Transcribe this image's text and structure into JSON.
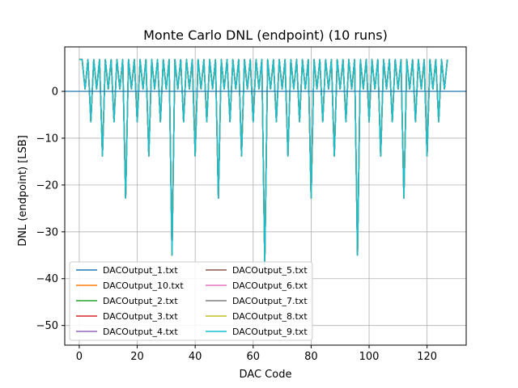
{
  "chart_data": {
    "type": "line",
    "title": "Monte Carlo DNL (endpoint) (10 runs)",
    "xlabel": "DAC Code",
    "ylabel": "DNL (endpoint) [LSB]",
    "xlim": [
      -5,
      133.5
    ],
    "ylim": [
      -54.2,
      9.5
    ],
    "xticks": [
      0,
      20,
      40,
      60,
      80,
      100,
      120
    ],
    "yticks": [
      0,
      -10,
      -20,
      -30,
      -40,
      -50
    ],
    "grid": true,
    "legend_placement": "lower-left",
    "legend_columns": 2,
    "reference_line": {
      "y": 0,
      "color": "#1f77b4"
    },
    "x": [
      0,
      1,
      2,
      3,
      4,
      5,
      6,
      7,
      8,
      9,
      10,
      11,
      12,
      13,
      14,
      15,
      16,
      17,
      18,
      19,
      20,
      21,
      22,
      23,
      24,
      25,
      26,
      27,
      28,
      29,
      30,
      31,
      32,
      33,
      34,
      35,
      36,
      37,
      38,
      39,
      40,
      41,
      42,
      43,
      44,
      45,
      46,
      47,
      48,
      49,
      50,
      51,
      52,
      53,
      54,
      55,
      56,
      57,
      58,
      59,
      60,
      61,
      62,
      63,
      64,
      65,
      66,
      67,
      68,
      69,
      70,
      71,
      72,
      73,
      74,
      75,
      76,
      77,
      78,
      79,
      80,
      81,
      82,
      83,
      84,
      85,
      86,
      87,
      88,
      89,
      90,
      91,
      92,
      93,
      94,
      95,
      96,
      97,
      98,
      99,
      100,
      101,
      102,
      103,
      104,
      105,
      106,
      107,
      108,
      109,
      110,
      111,
      112,
      113,
      114,
      115,
      116,
      117,
      118,
      119,
      120,
      121,
      122,
      123,
      124,
      125,
      126,
      127
    ],
    "series": [
      {
        "name": "DACOutput_1.txt",
        "color": "#1f77b4"
      },
      {
        "name": "DACOutput_10.txt",
        "color": "#ff7f0e"
      },
      {
        "name": "DACOutput_2.txt",
        "color": "#2ca02c"
      },
      {
        "name": "DACOutput_3.txt",
        "color": "#d62728"
      },
      {
        "name": "DACOutput_4.txt",
        "color": "#9467bd"
      },
      {
        "name": "DACOutput_5.txt",
        "color": "#8c564b"
      },
      {
        "name": "DACOutput_6.txt",
        "color": "#e377c2"
      },
      {
        "name": "DACOutput_7.txt",
        "color": "#7f7f7f"
      },
      {
        "name": "DACOutput_8.txt",
        "color": "#bcbd22"
      },
      {
        "name": "DACOutput_9.txt",
        "color": "#17becf"
      }
    ],
    "values": [
      6.8,
      6.8,
      0.5,
      6.8,
      -6.5,
      6.8,
      0.5,
      6.8,
      -13.8,
      6.8,
      0.5,
      6.8,
      -6.5,
      6.8,
      0.5,
      6.8,
      -22.8,
      6.8,
      0.5,
      6.8,
      -6.5,
      6.8,
      0.5,
      6.8,
      -13.8,
      6.8,
      0.5,
      6.8,
      -6.5,
      6.8,
      0.5,
      6.8,
      -35,
      6.8,
      0.5,
      6.8,
      -6.5,
      6.8,
      0.5,
      6.8,
      -13.8,
      6.8,
      0.5,
      6.8,
      -6.5,
      6.8,
      0.5,
      6.8,
      -22.8,
      6.8,
      0.5,
      6.8,
      -6.5,
      6.8,
      0.5,
      6.8,
      -13.8,
      6.8,
      0.5,
      6.8,
      -6.5,
      6.8,
      0.5,
      6.8,
      -37,
      6.8,
      0.5,
      6.8,
      -6.5,
      6.8,
      0.5,
      6.8,
      -13.8,
      6.8,
      0.5,
      6.8,
      -6.5,
      6.8,
      0.5,
      6.8,
      -22.8,
      6.8,
      0.5,
      6.8,
      -6.5,
      6.8,
      0.5,
      6.8,
      -13.8,
      6.8,
      0.5,
      6.8,
      -6.5,
      6.8,
      0.5,
      6.8,
      -35,
      6.8,
      0.5,
      6.8,
      -6.5,
      6.8,
      0.5,
      6.8,
      -13.8,
      6.8,
      0.5,
      6.8,
      -6.5,
      6.8,
      0.5,
      6.8,
      -22.8,
      6.8,
      0.5,
      6.8,
      -6.5,
      6.8,
      0.5,
      6.8,
      -13.8,
      6.8,
      0.5,
      6.8,
      -6.5,
      6.8,
      0.5,
      6.8
    ]
  }
}
